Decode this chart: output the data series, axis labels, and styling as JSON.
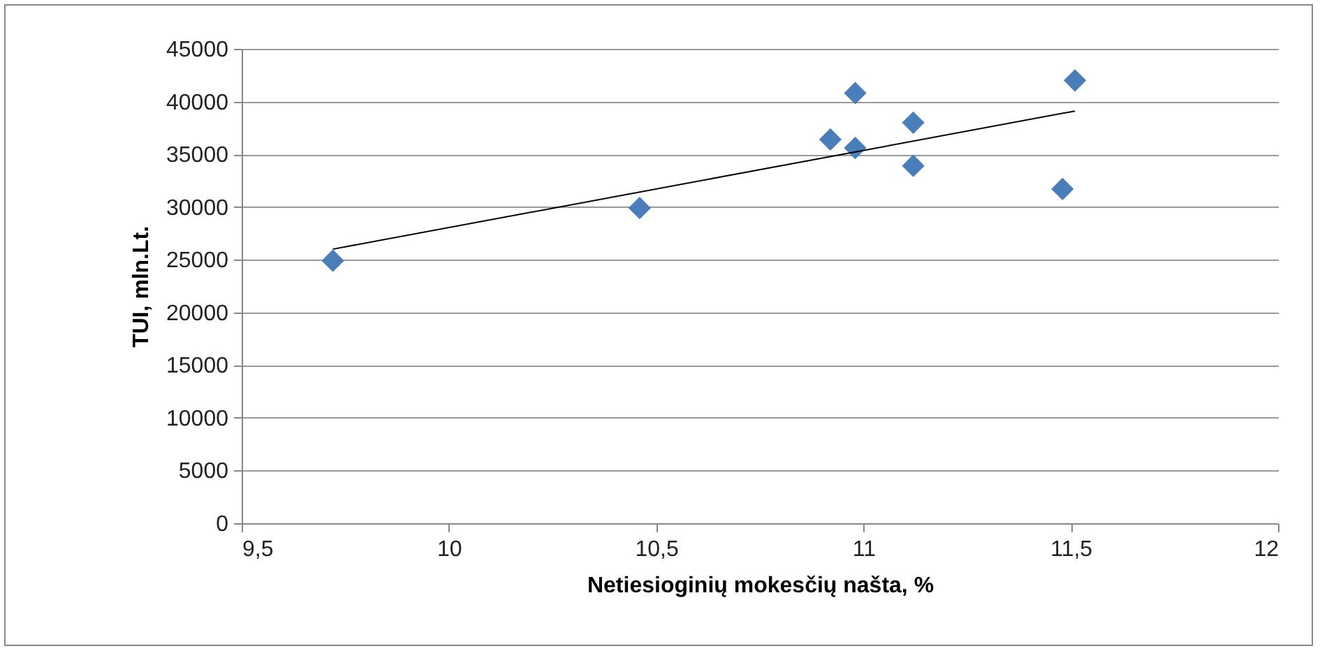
{
  "chart_data": {
    "type": "scatter",
    "xlabel": "Netiesioginių mokesčių našta, %",
    "ylabel": "TUI, mln.Lt.",
    "series": [
      {
        "color": "#4a7ebb",
        "marker": "diamond",
        "x": [
          9.72,
          10.46,
          10.92,
          10.98,
          10.98,
          11.12,
          11.12,
          11.48,
          11.51
        ],
        "values": [
          24900,
          29900,
          36400,
          40800,
          35600,
          38000,
          33900,
          31700,
          42000
        ]
      },
      {
        "type": "line",
        "marker": "none",
        "color": "#000000",
        "x": [
          9.72,
          11.51
        ],
        "values": [
          26000,
          39100
        ]
      }
    ],
    "xlim": [
      9.5,
      12
    ],
    "xticks": [
      {
        "value": 9.5,
        "label": "9,5"
      },
      10,
      {
        "value": 10.5,
        "label": "10,5"
      },
      11,
      {
        "value": 11.5,
        "label": "11,5"
      },
      12
    ],
    "ylim": [
      0,
      45000
    ],
    "yticks": [
      0,
      5000,
      10000,
      15000,
      20000,
      25000,
      30000,
      35000,
      40000,
      45000
    ],
    "grid": "y"
  }
}
